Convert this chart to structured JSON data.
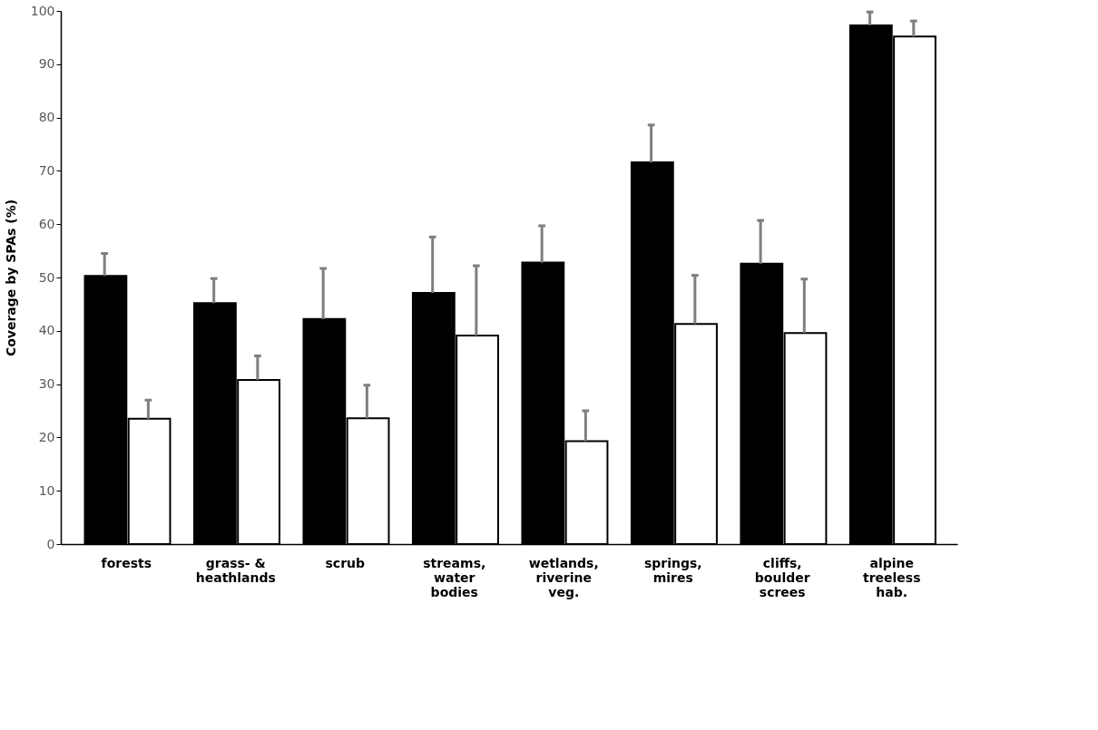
{
  "chart_data": {
    "type": "bar",
    "ylabel": "Coverage by SPAs (%)",
    "categories": [
      "forests",
      "grass- &\nheathlands",
      "scrub",
      "streams,\nwater\nbodies",
      "wetlands,\nriverine\nveg.",
      "springs,\nmires",
      "cliffs,\nboulder\nscrees",
      "alpine\ntreeless\nhab."
    ],
    "series": [
      {
        "color": "#000000",
        "values": [
          50.3,
          45.2,
          42.2,
          47.1,
          52.8,
          71.6,
          52.6,
          97.3
        ],
        "errors": [
          [
            50.3,
            54.5
          ],
          [
            45.2,
            49.8
          ],
          [
            42.2,
            51.7
          ],
          [
            47.1,
            57.6
          ],
          [
            52.8,
            59.7
          ],
          [
            71.6,
            78.6
          ],
          [
            52.6,
            60.7
          ],
          [
            97.3,
            99.8
          ]
        ]
      },
      {
        "color": "#ffffff",
        "values": [
          23.5,
          30.8,
          23.6,
          39.1,
          19.3,
          41.3,
          39.6,
          95.2
        ],
        "errors": [
          [
            23.5,
            27.0
          ],
          [
            30.8,
            35.3
          ],
          [
            23.6,
            29.8
          ],
          [
            39.1,
            52.2
          ],
          [
            19.3,
            25.0
          ],
          [
            41.3,
            50.4
          ],
          [
            39.6,
            49.7
          ],
          [
            95.2,
            98.1
          ]
        ]
      }
    ],
    "ylim": [
      0,
      100
    ],
    "yticks": [
      0,
      10,
      20,
      30,
      40,
      50,
      60,
      70,
      80,
      90,
      100
    ],
    "grid": false,
    "legend": false
  }
}
